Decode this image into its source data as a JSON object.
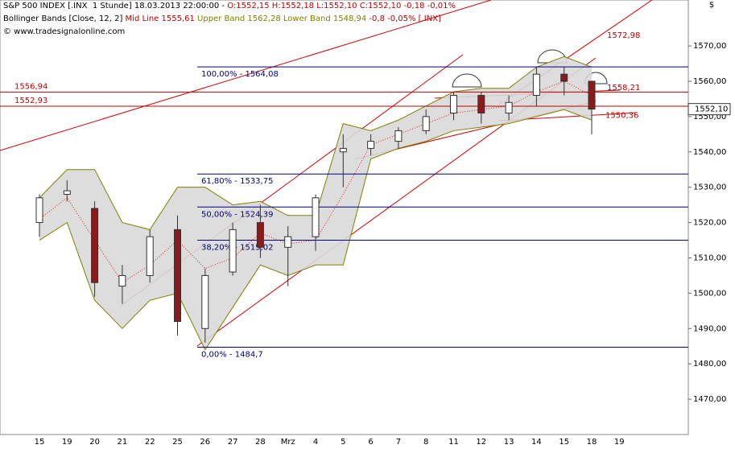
{
  "chart_data": {
    "type": "candlestick",
    "header": {
      "symbol": "S&P 500 INDEX [.INX  1 Stunde] 18.03.2013 22:00:00 -",
      "ohlc": "O:1552,15 H:1552,18 L:1552,10 C:1552,10 -0,18 -0,01%",
      "indicator": "Bollinger Bands [Close, 12, 2]",
      "mid": "Mid Line 1555,61",
      "bands": "Upper Band 1562,28 Lower Band 1548,94",
      "change": "-0,8 -0,05% [.INX]",
      "copyright": "© www.tradesignalonline.com",
      "currency": "$"
    },
    "categories": [
      "15",
      "19",
      "20",
      "21",
      "22",
      "25",
      "26",
      "27",
      "28",
      "Mrz",
      "4",
      "5",
      "6",
      "7",
      "8",
      "11",
      "12",
      "13",
      "14",
      "15",
      "18",
      "19"
    ],
    "open": [
      1520,
      1528,
      1524,
      1502,
      1505,
      1518,
      1490,
      1506,
      1520,
      1513,
      1516,
      1540,
      1541,
      1543,
      1546,
      1551,
      1556,
      1551,
      1556,
      1562,
      1560,
      null
    ],
    "close": [
      1527,
      1529,
      1503,
      1505,
      1516,
      1492,
      1505,
      1518,
      1513,
      1516,
      1527,
      1541,
      1543,
      1546,
      1550,
      1556,
      1551,
      1554,
      1562,
      1560,
      1552.1,
      null
    ],
    "high": [
      1528,
      1532,
      1526,
      1508,
      1518,
      1522,
      1507,
      1520,
      1525,
      1519,
      1528,
      1545,
      1545,
      1547,
      1552,
      1557,
      1557,
      1556,
      1564,
      1564,
      1560,
      null
    ],
    "low": [
      1516,
      1526,
      1499,
      1497,
      1503,
      1488,
      1486,
      1505,
      1510,
      1502,
      1512,
      1530,
      1539,
      1541,
      1545,
      1549,
      1548,
      1549,
      1553,
      1556,
      1545,
      null
    ],
    "up_color": "#ffffff",
    "down_color": "#8b1a1a",
    "bands": {
      "upper": [
        1527,
        1535,
        1535,
        1520,
        1518,
        1530,
        1530,
        1525,
        1526,
        1522,
        1522,
        1548,
        1546,
        1549,
        1553,
        1557,
        1558,
        1558,
        1564,
        1567,
        1564,
        null
      ],
      "lower": [
        1515,
        1520,
        1498,
        1490,
        1498,
        1500,
        1484,
        1496,
        1508,
        1505,
        1508,
        1508,
        1538,
        1541,
        1543,
        1546,
        1547,
        1548,
        1550,
        1552,
        1549,
        null
      ],
      "mid": [
        1521,
        1527,
        1515,
        1503,
        1508,
        1515,
        1507,
        1510,
        1517,
        1514,
        1515,
        1528,
        1542,
        1545,
        1548,
        1551,
        1552,
        1553,
        1557,
        1560,
        1556,
        null
      ],
      "color": "#808000",
      "fill": "#d9d9d9",
      "mid_color": "#e02020"
    },
    "fib_levels": [
      {
        "value": 1564.08,
        "label": "100,00% - 1564,08"
      },
      {
        "value": 1533.75,
        "label": "61,80% - 1533,75"
      },
      {
        "value": 1524.39,
        "label": "50,00% - 1524,39"
      },
      {
        "value": 1515.02,
        "label": "38,20% - 1515,02"
      },
      {
        "value": 1484.7,
        "label": "0,00% - 1484,7"
      }
    ],
    "fib_color": "#000080",
    "levels": [
      {
        "value": 1556.94,
        "label": "1556,94"
      },
      {
        "value": 1552.93,
        "label": "1552,93"
      }
    ],
    "level_color": "#c00000",
    "annotations": [
      {
        "value": 1572.98,
        "label": "1572,98"
      },
      {
        "value": 1558.21,
        "label": "1558,21"
      },
      {
        "value": 1550.36,
        "label": "1550,36"
      }
    ],
    "last_price": {
      "value": 1552.1,
      "label": "1552,10"
    },
    "ylim": [
      1460,
      1583
    ],
    "yticks": [
      {
        "value": 1470,
        "label": "1470,00"
      },
      {
        "value": 1480,
        "label": "1480,00"
      },
      {
        "value": 1490,
        "label": "1490,00"
      },
      {
        "value": 1500,
        "label": "1500,00"
      },
      {
        "value": 1510,
        "label": "1510,00"
      },
      {
        "value": 1520,
        "label": "1520,00"
      },
      {
        "value": 1530,
        "label": "1530,00"
      },
      {
        "value": 1540,
        "label": "1540,00"
      },
      {
        "value": 1550,
        "label": "1550,00"
      },
      {
        "value": 1560,
        "label": "1560,00"
      },
      {
        "value": 1570,
        "label": "1570,00"
      }
    ]
  }
}
